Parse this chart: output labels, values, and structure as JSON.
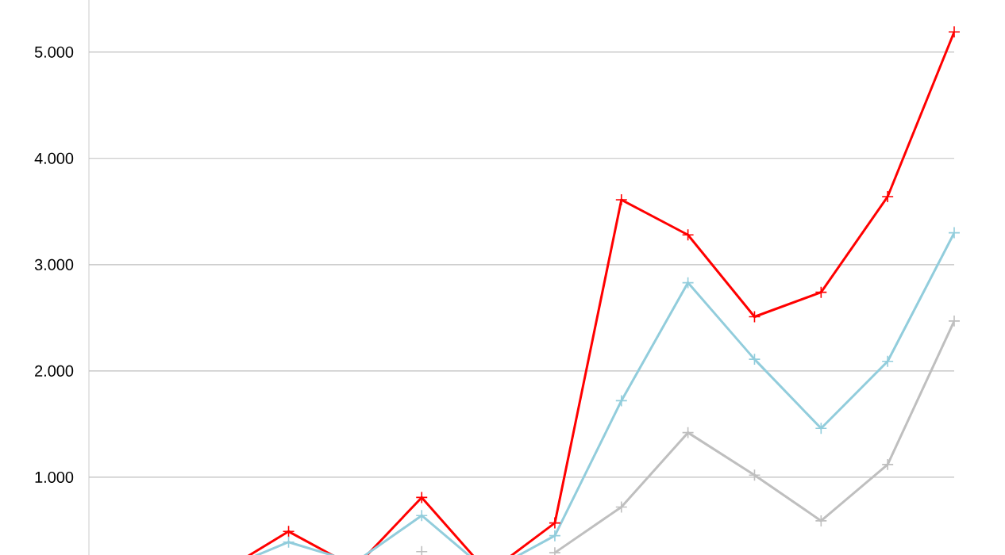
{
  "chart_data": {
    "type": "line",
    "categories": [
      null,
      null,
      null,
      null,
      null,
      null,
      null,
      null,
      null,
      null,
      null,
      null
    ],
    "series": [
      {
        "color": "#ff0000",
        "values": [
          110,
          490,
          150,
          810,
          100,
          570,
          3610,
          3280,
          2510,
          2740,
          3640,
          5190
        ]
      },
      {
        "color": "#92cddc",
        "values": [
          130,
          390,
          200,
          640,
          110,
          450,
          1720,
          2830,
          2110,
          1460,
          2090,
          3300
        ]
      },
      {
        "color": "#bfbfbf",
        "values": [
          null,
          null,
          null,
          300,
          null,
          290,
          720,
          1420,
          1020,
          590,
          1120,
          2470
        ]
      }
    ],
    "ylim": [
      0,
      5490
    ],
    "yticks": [
      {
        "value": 1000,
        "label": "1.000"
      },
      {
        "value": 2000,
        "label": "2.000"
      },
      {
        "value": 3000,
        "label": "3.000"
      },
      {
        "value": 4000,
        "label": "4.000"
      },
      {
        "value": 5000,
        "label": "5.000"
      }
    ],
    "grid": "y",
    "marker": "cross",
    "line_style": "solid"
  }
}
